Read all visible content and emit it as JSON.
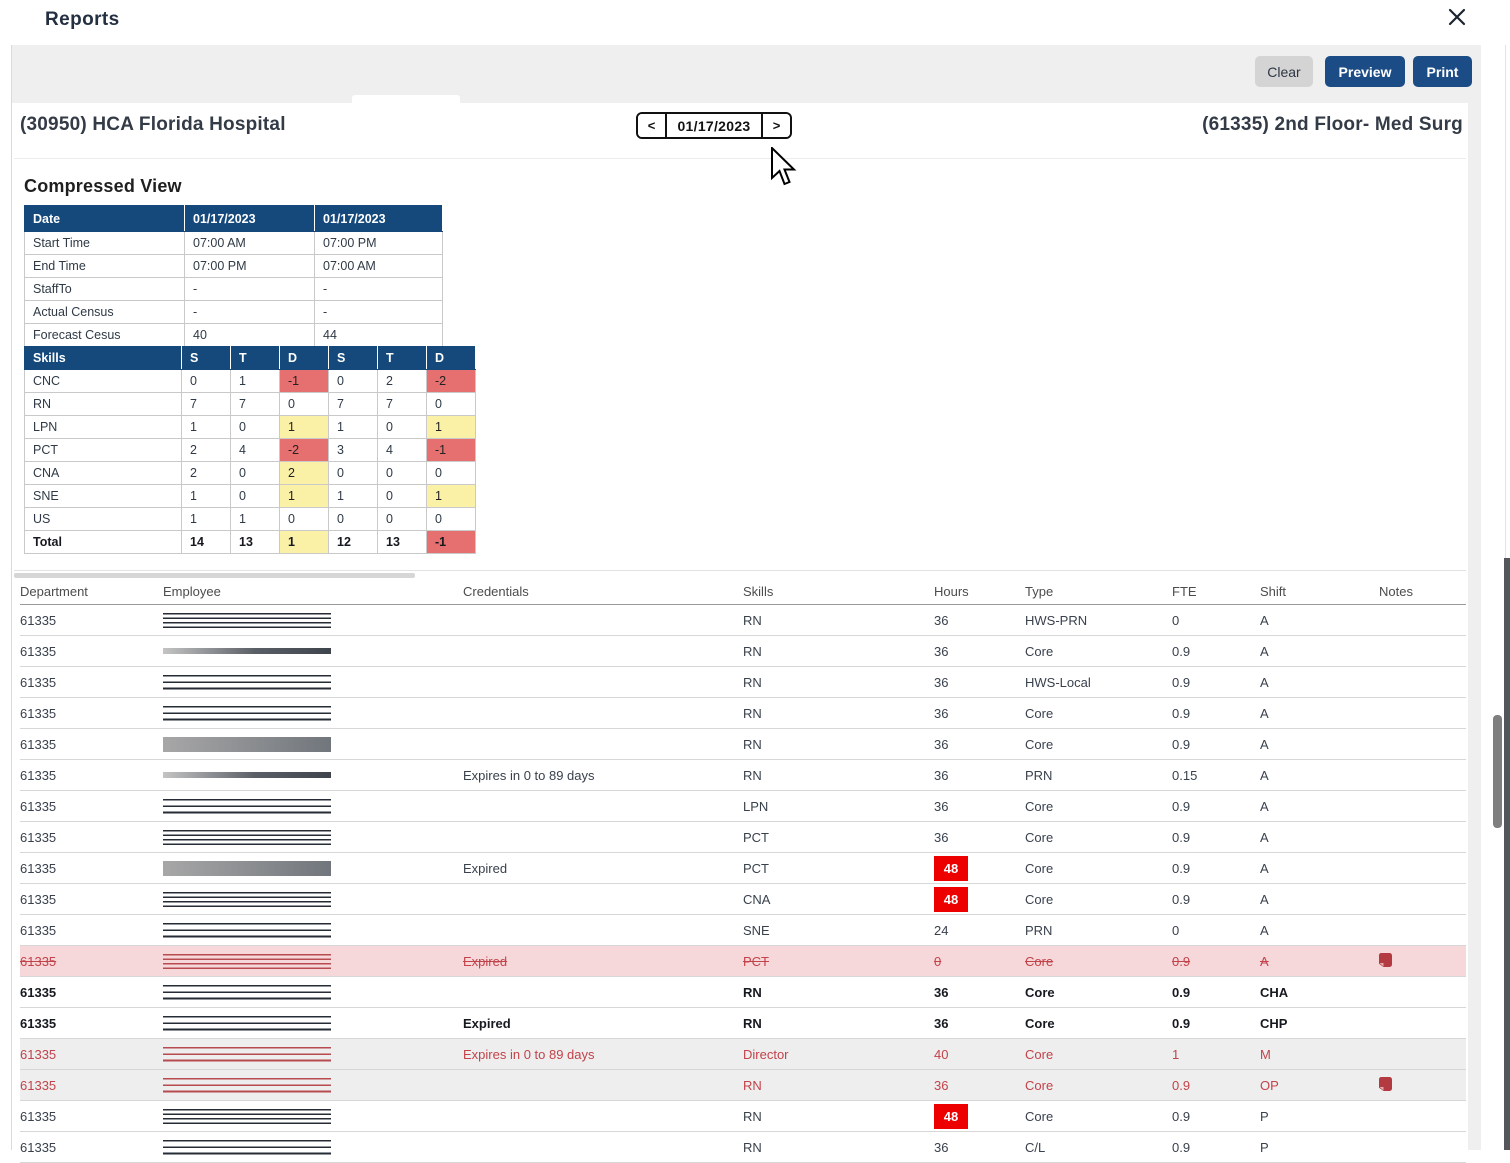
{
  "window": {
    "title": "Reports"
  },
  "toolbar": {
    "clear": "Clear",
    "preview": "Preview",
    "print": "Print"
  },
  "header": {
    "facility": "(30950) HCA Florida Hospital",
    "unit": "(61335) 2nd Floor- Med Surg",
    "date": "01/17/2023",
    "prev": "<",
    "next": ">"
  },
  "compressed": {
    "heading": "Compressed View",
    "info_header": [
      "Date",
      "01/17/2023",
      "01/17/2023"
    ],
    "info_rows": [
      [
        "Start Time",
        "07:00 AM",
        "07:00 PM"
      ],
      [
        "End Time",
        "07:00 PM",
        "07:00 AM"
      ],
      [
        "StaffTo",
        "-",
        "-"
      ],
      [
        "Actual Census",
        "-",
        "-"
      ],
      [
        "Forecast Cesus",
        "40",
        "44"
      ]
    ],
    "skills_header": [
      "Skills",
      "S",
      "T",
      "D",
      "S",
      "T",
      "D"
    ],
    "skills_rows": [
      {
        "label": "CNC",
        "values": [
          "0",
          "1",
          "-1",
          "0",
          "2",
          "-2"
        ],
        "hl": [
          "",
          "",
          "red",
          "",
          "",
          "red"
        ],
        "total": false
      },
      {
        "label": "RN",
        "values": [
          "7",
          "7",
          "0",
          "7",
          "7",
          "0"
        ],
        "hl": [
          "",
          "",
          "",
          "",
          "",
          ""
        ],
        "total": false
      },
      {
        "label": "LPN",
        "values": [
          "1",
          "0",
          "1",
          "1",
          "0",
          "1"
        ],
        "hl": [
          "",
          "",
          "yellow",
          "",
          "",
          "yellow"
        ],
        "total": false
      },
      {
        "label": "PCT",
        "values": [
          "2",
          "4",
          "-2",
          "3",
          "4",
          "-1"
        ],
        "hl": [
          "",
          "",
          "red",
          "",
          "",
          "red"
        ],
        "total": false
      },
      {
        "label": "CNA",
        "values": [
          "2",
          "0",
          "2",
          "0",
          "0",
          "0"
        ],
        "hl": [
          "",
          "",
          "yellow",
          "",
          "",
          ""
        ],
        "total": false
      },
      {
        "label": "SNE",
        "values": [
          "1",
          "0",
          "1",
          "1",
          "0",
          "1"
        ],
        "hl": [
          "",
          "",
          "yellow",
          "",
          "",
          "yellow"
        ],
        "total": false
      },
      {
        "label": "US",
        "values": [
          "1",
          "1",
          "0",
          "0",
          "0",
          "0"
        ],
        "hl": [
          "",
          "",
          "",
          "",
          "",
          ""
        ],
        "total": false
      },
      {
        "label": "Total",
        "values": [
          "14",
          "13",
          "1",
          "12",
          "13",
          "-1"
        ],
        "hl": [
          "",
          "",
          "yellow",
          "",
          "",
          "red"
        ],
        "total": true
      }
    ]
  },
  "roster": {
    "columns": [
      "Department",
      "Employee",
      "Credentials",
      "Skills",
      "Hours",
      "Type",
      "FTE",
      "Shift",
      "Notes"
    ],
    "rows": [
      {
        "dept": "61335",
        "cred": "",
        "skill": "RN",
        "hours": "36",
        "hours_alert": false,
        "type": "HWS-PRN",
        "fte": "0",
        "shift": "A",
        "note": false,
        "style": "normal",
        "bar": "lines4",
        "tone": "dark"
      },
      {
        "dept": "61335",
        "cred": "",
        "skill": "RN",
        "hours": "36",
        "hours_alert": false,
        "type": "Core",
        "fte": "0.9",
        "shift": "A",
        "note": false,
        "style": "normal",
        "bar": "blur",
        "tone": "dark"
      },
      {
        "dept": "61335",
        "cred": "",
        "skill": "RN",
        "hours": "36",
        "hours_alert": false,
        "type": "HWS-Local",
        "fte": "0.9",
        "shift": "A",
        "note": false,
        "style": "normal",
        "bar": "lines3",
        "tone": "dark"
      },
      {
        "dept": "61335",
        "cred": "",
        "skill": "RN",
        "hours": "36",
        "hours_alert": false,
        "type": "Core",
        "fte": "0.9",
        "shift": "A",
        "note": false,
        "style": "normal",
        "bar": "lines3",
        "tone": "dark"
      },
      {
        "dept": "61335",
        "cred": "",
        "skill": "RN",
        "hours": "36",
        "hours_alert": false,
        "type": "Core",
        "fte": "0.9",
        "shift": "A",
        "note": false,
        "style": "normal",
        "bar": "solid",
        "tone": "dark"
      },
      {
        "dept": "61335",
        "cred": "Expires in 0 to 89 days",
        "skill": "RN",
        "hours": "36",
        "hours_alert": false,
        "type": "PRN",
        "fte": "0.15",
        "shift": "A",
        "note": false,
        "style": "normal",
        "bar": "blur",
        "tone": "dark"
      },
      {
        "dept": "61335",
        "cred": "",
        "skill": "LPN",
        "hours": "36",
        "hours_alert": false,
        "type": "Core",
        "fte": "0.9",
        "shift": "A",
        "note": false,
        "style": "normal",
        "bar": "lines3",
        "tone": "dark"
      },
      {
        "dept": "61335",
        "cred": "",
        "skill": "PCT",
        "hours": "36",
        "hours_alert": false,
        "type": "Core",
        "fte": "0.9",
        "shift": "A",
        "note": false,
        "style": "normal",
        "bar": "lines4",
        "tone": "dark"
      },
      {
        "dept": "61335",
        "cred": "Expired",
        "skill": "PCT",
        "hours": "48",
        "hours_alert": true,
        "type": "Core",
        "fte": "0.9",
        "shift": "A",
        "note": false,
        "style": "normal",
        "bar": "solid",
        "tone": "dark"
      },
      {
        "dept": "61335",
        "cred": "",
        "skill": "CNA",
        "hours": "48",
        "hours_alert": true,
        "type": "Core",
        "fte": "0.9",
        "shift": "A",
        "note": false,
        "style": "normal",
        "bar": "lines4",
        "tone": "dark"
      },
      {
        "dept": "61335",
        "cred": "",
        "skill": "SNE",
        "hours": "24",
        "hours_alert": false,
        "type": "PRN",
        "fte": "0",
        "shift": "A",
        "note": false,
        "style": "normal",
        "bar": "lines3",
        "tone": "dark"
      },
      {
        "dept": "61335",
        "cred": "Expired",
        "skill": "PCT",
        "hours": "0",
        "hours_alert": false,
        "type": "Core",
        "fte": "0.9",
        "shift": "A",
        "note": true,
        "style": "struck",
        "bar": "lines4",
        "tone": "red"
      },
      {
        "dept": "61335",
        "cred": "",
        "skill": "RN",
        "hours": "36",
        "hours_alert": false,
        "type": "Core",
        "fte": "0.9",
        "shift": "CHA",
        "note": false,
        "style": "bold",
        "bar": "lines3",
        "tone": "dark"
      },
      {
        "dept": "61335",
        "cred": "Expired",
        "skill": "RN",
        "hours": "36",
        "hours_alert": false,
        "type": "Core",
        "fte": "0.9",
        "shift": "CHP",
        "note": false,
        "style": "bold",
        "bar": "lines3",
        "tone": "dark"
      },
      {
        "dept": "61335",
        "cred": "Expires in 0 to 89 days",
        "skill": "Director",
        "hours": "40",
        "hours_alert": false,
        "type": "Core",
        "fte": "1",
        "shift": "M",
        "note": false,
        "style": "alert",
        "bar": "lines3",
        "tone": "red"
      },
      {
        "dept": "61335",
        "cred": "",
        "skill": "RN",
        "hours": "36",
        "hours_alert": false,
        "type": "Core",
        "fte": "0.9",
        "shift": "OP",
        "note": true,
        "style": "alert",
        "bar": "lines3",
        "tone": "red"
      },
      {
        "dept": "61335",
        "cred": "",
        "skill": "RN",
        "hours": "48",
        "hours_alert": true,
        "type": "Core",
        "fte": "0.9",
        "shift": "P",
        "note": false,
        "style": "normal",
        "bar": "lines4",
        "tone": "dark"
      },
      {
        "dept": "61335",
        "cred": "",
        "skill": "RN",
        "hours": "36",
        "hours_alert": false,
        "type": "C/L",
        "fte": "0.9",
        "shift": "P",
        "note": false,
        "style": "normal",
        "bar": "lines3",
        "tone": "dark"
      }
    ]
  },
  "colors": {
    "accent_navy": "#1B4C85",
    "table_header_blue": "#15497C",
    "deficit_red_cell": "#E66F6F",
    "surplus_yellow_cell": "#FAF1A6",
    "hours_badge_red": "#ED0000",
    "removed_row_pink": "#F7D8DA",
    "flagged_row_gray": "#EEEEEE",
    "flagged_text_red": "#C2434A",
    "note_icon_red": "#B23A40"
  }
}
